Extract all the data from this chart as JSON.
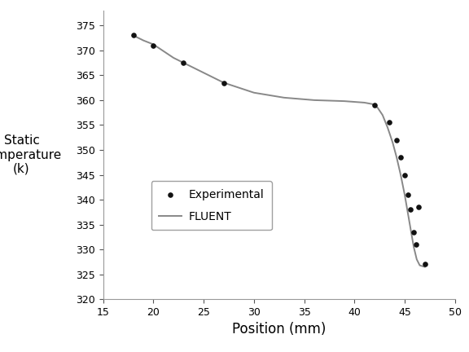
{
  "exp_x": [
    18.0,
    20.0,
    23.0,
    27.0,
    42.0,
    43.5,
    44.2,
    44.6,
    45.0,
    45.3,
    45.6,
    45.9,
    46.1,
    46.4,
    47.0
  ],
  "exp_y": [
    373.0,
    371.0,
    367.5,
    363.5,
    359.0,
    355.5,
    352.0,
    348.5,
    345.0,
    341.0,
    338.0,
    333.5,
    331.0,
    338.5,
    327.0
  ],
  "fluent_x": [
    18.0,
    19.0,
    20.0,
    22.0,
    23.0,
    25.0,
    27.0,
    30.0,
    33.0,
    36.0,
    39.0,
    41.0,
    41.8,
    42.3,
    42.8,
    43.3,
    43.8,
    44.2,
    44.6,
    45.0,
    45.3,
    45.6,
    45.9,
    46.2,
    46.5,
    47.0
  ],
  "fluent_y": [
    373.0,
    372.0,
    371.2,
    368.5,
    367.5,
    365.5,
    363.5,
    361.5,
    360.5,
    360.0,
    359.8,
    359.5,
    359.2,
    358.5,
    357.0,
    354.5,
    351.5,
    348.5,
    345.0,
    341.0,
    337.5,
    334.0,
    330.5,
    328.0,
    326.8,
    326.5
  ],
  "xlabel": "Position (mm)",
  "ylabel": "Static\nTemperature\n(k)",
  "xlim": [
    15,
    50
  ],
  "ylim": [
    320,
    378
  ],
  "xticks": [
    15,
    20,
    25,
    30,
    35,
    40,
    45,
    50
  ],
  "yticks": [
    320,
    325,
    330,
    335,
    340,
    345,
    350,
    355,
    360,
    365,
    370,
    375
  ],
  "legend_labels": [
    "Experimental",
    "FLUENT"
  ],
  "dot_color": "#111111",
  "line_color": "#888888",
  "background_color": "#ffffff",
  "dot_size": 14,
  "line_width": 1.4,
  "tick_color": "#555555",
  "spine_color": "#999999"
}
